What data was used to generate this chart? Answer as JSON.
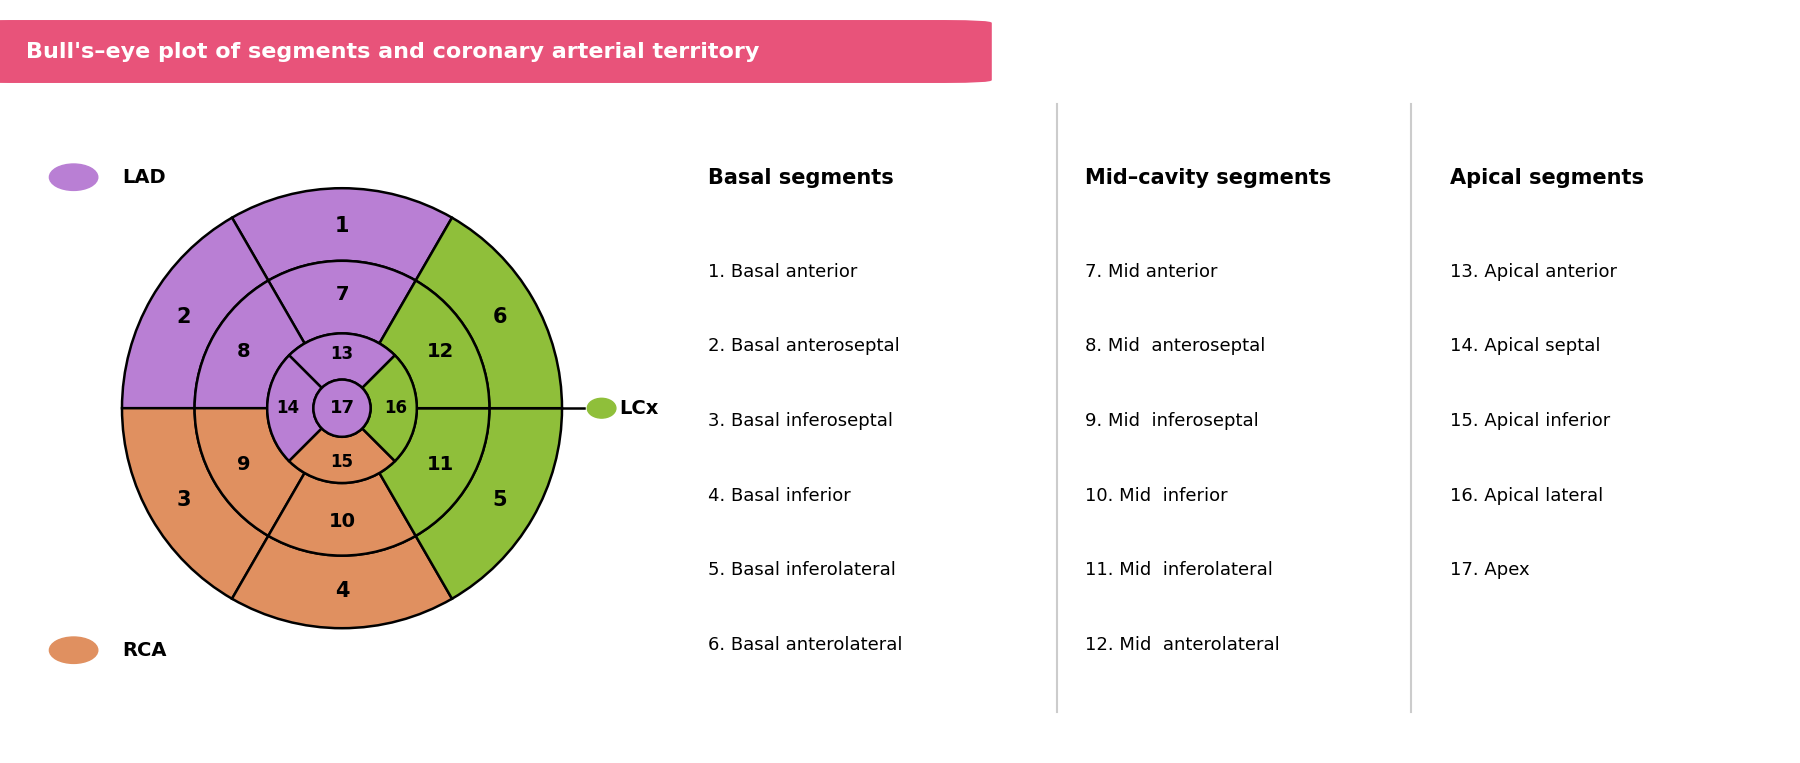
{
  "title": "Bull's–eye plot of segments and coronary arterial territory",
  "title_bg_color": "#e8537a",
  "title_text_color": "#ffffff",
  "bg_color": "#ffffff",
  "lad_color": "#b97fd4",
  "rca_color": "#e09060",
  "lcx_color": "#8fbf3a",
  "basal_items": [
    "1. Basal anterior",
    "2. Basal anteroseptal",
    "3. Basal inferoseptal",
    "4. Basal inferior",
    "5. Basal inferolateral",
    "6. Basal anterolateral"
  ],
  "mid_items": [
    "7. Mid anterior",
    "8. Mid  anteroseptal",
    "9. Mid  inferoseptal",
    "10. Mid  inferior",
    "11. Mid  inferolateral",
    "12. Mid  anterolateral"
  ],
  "apical_items": [
    "13. Apical anterior",
    "14. Apical septal",
    "15. Apical inferior",
    "16. Apical lateral",
    "17. Apex"
  ],
  "r_outer": 1.0,
  "r_mid": 0.67,
  "r_inner": 0.34,
  "r_apex": 0.13,
  "basal_segs": [
    [
      60,
      120,
      "#b97fd4",
      "1",
      0.83
    ],
    [
      120,
      180,
      "#b97fd4",
      "2",
      0.83
    ],
    [
      180,
      240,
      "#e09060",
      "3",
      0.83
    ],
    [
      240,
      300,
      "#e09060",
      "4",
      0.83
    ],
    [
      300,
      360,
      "#8fbf3a",
      "5",
      0.83
    ],
    [
      0,
      60,
      "#8fbf3a",
      "6",
      0.83
    ]
  ],
  "mid_segs": [
    [
      60,
      120,
      "#b97fd4",
      "7",
      0.515
    ],
    [
      120,
      180,
      "#b97fd4",
      "8",
      0.515
    ],
    [
      180,
      240,
      "#e09060",
      "9",
      0.515
    ],
    [
      240,
      300,
      "#e09060",
      "10",
      0.515
    ],
    [
      300,
      360,
      "#8fbf3a",
      "11",
      0.515
    ],
    [
      0,
      60,
      "#8fbf3a",
      "12",
      0.515
    ]
  ],
  "apical_segs": [
    [
      45,
      135,
      "#b97fd4",
      "13",
      0.245
    ],
    [
      135,
      225,
      "#b97fd4",
      "14",
      0.245
    ],
    [
      225,
      315,
      "#e09060",
      "15",
      0.245
    ],
    [
      315,
      405,
      "#8fbf3a",
      "16",
      0.245
    ]
  ]
}
